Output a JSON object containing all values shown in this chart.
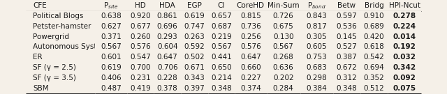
{
  "columns": [
    "CFE",
    "P_site",
    "HD",
    "HDA",
    "EGP",
    "CI",
    "CoreHD",
    "Min-Sum",
    "P_bond",
    "Betw",
    "Bridg",
    "HPI-Ncut"
  ],
  "col_headers": [
    "CFE",
    "P$_{site}$",
    "HD",
    "HDA",
    "EGP",
    "CI",
    "CoreHD",
    "Min-Sum",
    "P$_{bond}$",
    "Betw",
    "Bridg",
    "HPI-Ncut"
  ],
  "rows": [
    [
      "Political Blogs",
      "0.638",
      "0.920",
      "0.861",
      "0.619",
      "0.657",
      "0.815",
      "0.726",
      "0.843",
      "0.597",
      "0.910",
      "0.278"
    ],
    [
      "Petster-hamster",
      "0.627",
      "0.677",
      "0.696",
      "0.747",
      "0.687",
      "0.736",
      "0.675",
      "0.817",
      "0.536",
      "0.689",
      "0.224"
    ],
    [
      "Powergrid",
      "0.371",
      "0.260",
      "0.293",
      "0.263",
      "0.219",
      "0.256",
      "0.130",
      "0.305",
      "0.145",
      "0.420",
      "0.014"
    ],
    [
      "Autonomous Systems",
      "0.567",
      "0.576",
      "0.604",
      "0.592",
      "0.567",
      "0.576",
      "0.567",
      "0.605",
      "0.527",
      "0.618",
      "0.192"
    ],
    [
      "ER",
      "0.601",
      "0.547",
      "0.647",
      "0.502",
      "0.441",
      "0.647",
      "0.268",
      "0.753",
      "0.387",
      "0.542",
      "0.032"
    ],
    [
      "SF (γ = 2.5)",
      "0.619",
      "0.700",
      "0.706",
      "0.671",
      "0.650",
      "0.660",
      "0.636",
      "0.683",
      "0.672",
      "0.694",
      "0.342"
    ],
    [
      "SF (γ = 3.5)",
      "0.406",
      "0.231",
      "0.228",
      "0.343",
      "0.214",
      "0.227",
      "0.202",
      "0.298",
      "0.312",
      "0.352",
      "0.092"
    ],
    [
      "SBM",
      "0.487",
      "0.419",
      "0.378",
      "0.397",
      "0.348",
      "0.374",
      "0.284",
      "0.384",
      "0.348",
      "0.512",
      "0.075"
    ]
  ],
  "last_col_bold": true,
  "bg_color": "#f5f0e8",
  "text_color": "#1a1a1a",
  "header_line_color": "#333333",
  "font_size": 7.5,
  "header_font_size": 7.5
}
